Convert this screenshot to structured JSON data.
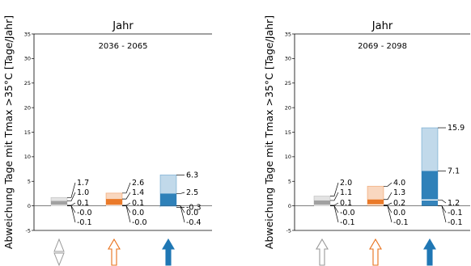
{
  "chart_data": [
    {
      "type": "bar",
      "title": "Jahr",
      "period": "2036 - 2065",
      "ylabel": "Abweichung Tage mit Tmax >35°C [Tage/Jahr]",
      "ylim": [
        -5,
        35
      ],
      "yticks": [
        "35",
        "30",
        "25",
        "20",
        "15",
        "10",
        "5",
        "0",
        "-5"
      ],
      "grid": false,
      "scenarios": [
        {
          "color": "#999999",
          "arrow": "double-outline",
          "p85": 1.7,
          "p50": 1.0,
          "p15": 0.1,
          "labels": [
            "1.7",
            "1.0",
            "0.1",
            "-0.0",
            "-0.1"
          ]
        },
        {
          "color": "#e8701a",
          "arrow": "up-outline",
          "p85": 2.6,
          "p50": 1.4,
          "p15": 0.1,
          "labels": [
            "2.6",
            "1.4",
            "0.1",
            "0.0",
            "-0.0"
          ]
        },
        {
          "color": "#1f77b4",
          "arrow": "up-filled",
          "p85": 6.3,
          "p50": 2.5,
          "p15": -0.3,
          "labels": [
            "6.3",
            "2.5",
            "-0.3",
            "0.0",
            "-0.4"
          ]
        }
      ]
    },
    {
      "type": "bar",
      "title": "Jahr",
      "period": "2069 - 2098",
      "ylabel": "Abweichung Tage mit Tmax >35°C [Tage/Jahr]",
      "ylim": [
        -5,
        35
      ],
      "yticks": [
        "35",
        "30",
        "25",
        "20",
        "15",
        "10",
        "5",
        "0",
        "-5"
      ],
      "grid": false,
      "scenarios": [
        {
          "color": "#999999",
          "arrow": "up-outline",
          "p85": 2.0,
          "p50": 1.1,
          "p15": 0.1,
          "labels": [
            "2.0",
            "1.1",
            "0.1",
            "-0.0",
            "-0.1"
          ]
        },
        {
          "color": "#e8701a",
          "arrow": "up-outline",
          "p85": 4.0,
          "p50": 1.3,
          "p15": 0.2,
          "labels": [
            "4.0",
            "1.3",
            "0.2",
            "0.0",
            "-0.1"
          ]
        },
        {
          "color": "#1f77b4",
          "arrow": "up-filled",
          "p85": 15.9,
          "p50": 7.1,
          "p15": 1.2,
          "labels": [
            "15.9",
            "7.1",
            "1.2",
            "-0.1",
            "-0.1"
          ]
        }
      ]
    }
  ]
}
